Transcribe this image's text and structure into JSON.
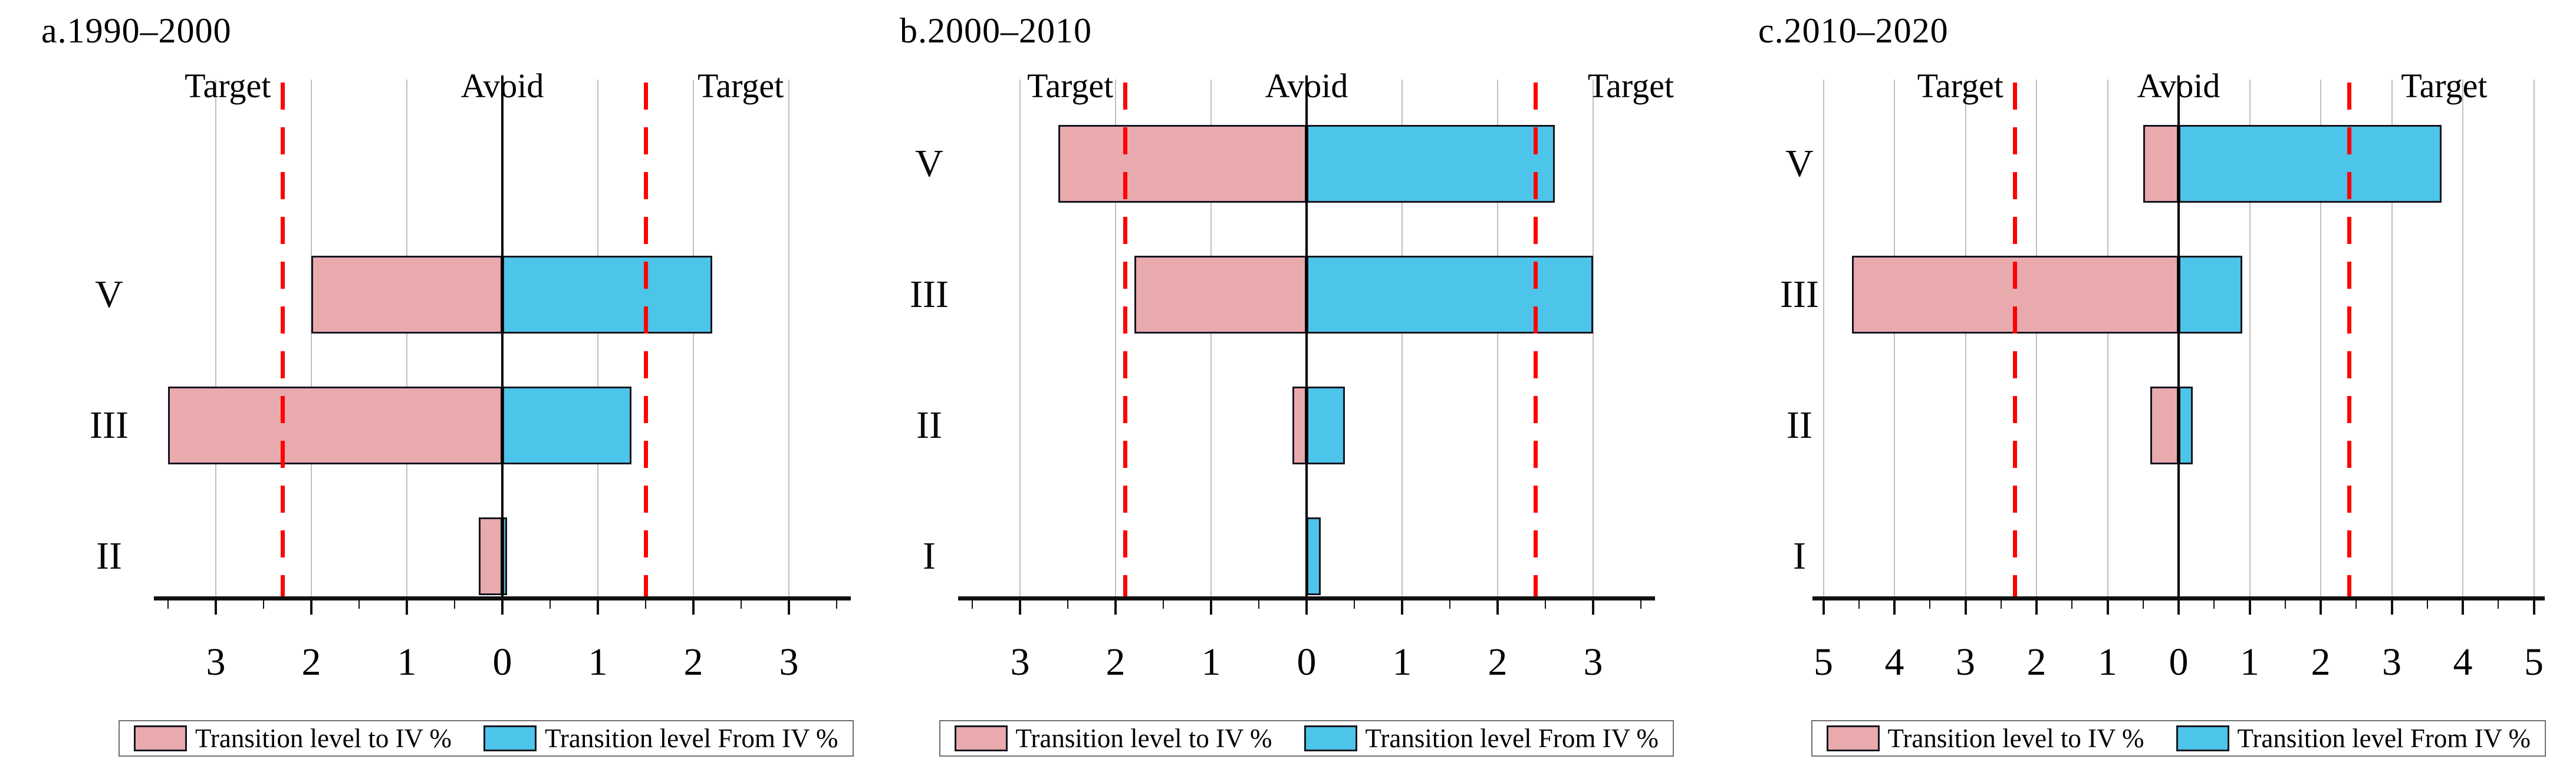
{
  "legend": {
    "to_iv_label": "Transition level to IV %",
    "from_iv_label": "Transition level From IV %"
  },
  "annotations": {
    "target_left": "Target",
    "avoid": "Avoid",
    "target_right": "Target"
  },
  "colors": {
    "to_iv_fill": "#e8aaad",
    "from_iv_fill": "#4dc4e9",
    "target_line": "#ff0000",
    "avoid_line": "#000000",
    "bar_border": "#15151f",
    "gridline": "#bfbfbf"
  },
  "chart_data": [
    {
      "type": "bar",
      "orientation": "horizontal-diverging",
      "title": "a.1990–2000",
      "categories": [
        "V",
        "III",
        "II"
      ],
      "row_slots": [
        2,
        3,
        4
      ],
      "series": [
        {
          "name": "Transition level to IV %",
          "direction": "left",
          "values": [
            2.0,
            3.5,
            0.25
          ]
        },
        {
          "name": "Transition level From IV %",
          "direction": "right",
          "values": [
            2.2,
            1.35,
            0.05
          ]
        }
      ],
      "target_left": -2.3,
      "target_right": 1.5,
      "avoid": 0,
      "xticks": [
        -3,
        -2,
        -1,
        0,
        1,
        2,
        3
      ],
      "tick_labels": [
        "3",
        "2",
        "1",
        "0",
        "1",
        "2",
        "3"
      ],
      "xlim": [
        -3.65,
        3.65
      ],
      "grid": true,
      "legend_position": "bottom"
    },
    {
      "type": "bar",
      "orientation": "horizontal-diverging",
      "title": "b.2000–2010",
      "categories": [
        "V",
        "III",
        "II",
        "I"
      ],
      "row_slots": [
        1,
        2,
        3,
        4
      ],
      "series": [
        {
          "name": "Transition level to IV %",
          "direction": "left",
          "values": [
            2.6,
            1.8,
            0.15,
            0
          ]
        },
        {
          "name": "Transition level From IV %",
          "direction": "right",
          "values": [
            2.6,
            3.0,
            0.4,
            0.15
          ]
        }
      ],
      "target_left": -1.9,
      "target_right": 2.4,
      "avoid": 0,
      "xticks": [
        -3,
        -2,
        -1,
        0,
        1,
        2,
        3
      ],
      "tick_labels": [
        "3",
        "2",
        "1",
        "0",
        "1",
        "2",
        "3"
      ],
      "xlim": [
        -3.65,
        3.65
      ],
      "grid": true,
      "legend_position": "bottom"
    },
    {
      "type": "bar",
      "orientation": "horizontal-diverging",
      "title": "c.2010–2020",
      "categories": [
        "V",
        "III",
        "II",
        "I"
      ],
      "row_slots": [
        1,
        2,
        3,
        4
      ],
      "series": [
        {
          "name": "Transition level to IV %",
          "direction": "left",
          "values": [
            0.5,
            4.6,
            0.4,
            0
          ]
        },
        {
          "name": "Transition level From IV %",
          "direction": "right",
          "values": [
            3.7,
            0.9,
            0.2,
            0
          ]
        }
      ],
      "target_left": -2.3,
      "target_right": 2.4,
      "avoid": 0,
      "xticks": [
        -5,
        -4,
        -3,
        -2,
        -1,
        0,
        1,
        2,
        3,
        4,
        5
      ],
      "tick_labels": [
        "5",
        "4",
        "3",
        "2",
        "1",
        "0",
        "1",
        "2",
        "3",
        "4",
        "5"
      ],
      "xlim": [
        -5.15,
        5.15
      ],
      "grid": true,
      "legend_position": "bottom"
    }
  ]
}
